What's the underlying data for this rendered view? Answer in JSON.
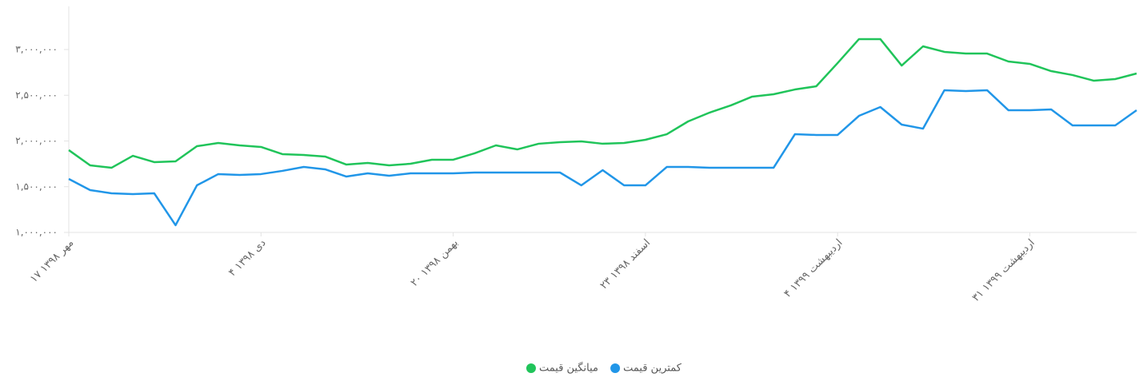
{
  "chart_data": {
    "type": "line",
    "categories": [
      "۱۷ مهر ۱۳۹۸",
      null,
      null,
      null,
      null,
      null,
      null,
      null,
      null,
      "۴ دی ۱۳۹۸",
      null,
      null,
      null,
      null,
      null,
      null,
      null,
      null,
      "۲۰ بهمن ۱۳۹۸",
      null,
      null,
      null,
      null,
      null,
      null,
      null,
      null,
      "۲۳ اسفند ۱۳۹۸",
      null,
      null,
      null,
      null,
      null,
      null,
      null,
      null,
      "۴ اردیبهشت ۱۳۹۹",
      null,
      null,
      null,
      null,
      null,
      null,
      null,
      null,
      "۳۱ اردیبهشت ۱۳۹۹",
      null,
      null,
      null,
      null,
      null
    ],
    "series": [
      {
        "name": "کمترین قیمت",
        "color": "#2196e8",
        "values": [
          1585000,
          1463000,
          1428000,
          1419000,
          1428000,
          1079000,
          1515000,
          1638000,
          1629000,
          1638000,
          1673000,
          1716000,
          1690000,
          1611000,
          1646000,
          1620000,
          1646000,
          1646000,
          1646000,
          1655000,
          1655000,
          1655000,
          1655000,
          1655000,
          1515000,
          1681000,
          1515000,
          1515000,
          1716000,
          1716000,
          1707000,
          1707000,
          1707000,
          1707000,
          2074000,
          2066000,
          2066000,
          2275000,
          2371000,
          2179000,
          2135000,
          2555000,
          2546000,
          2555000,
          2336000,
          2336000,
          2345000,
          2170000,
          2170000,
          2170000,
          2336000
        ]
      },
      {
        "name": "میانگین قیمت",
        "color": "#20c45a",
        "values": [
          1900000,
          1734000,
          1707000,
          1838000,
          1769000,
          1777000,
          1943000,
          1978000,
          1952000,
          1935000,
          1856000,
          1847000,
          1830000,
          1742000,
          1760000,
          1734000,
          1751000,
          1795000,
          1795000,
          1865000,
          1952000,
          1908000,
          1970000,
          1987000,
          1996000,
          1970000,
          1978000,
          2013000,
          2074000,
          2214000,
          2310000,
          2389000,
          2485000,
          2511000,
          2563000,
          2598000,
          2852000,
          3114000,
          3114000,
          2825000,
          3035000,
          2974000,
          2956000,
          2956000,
          2869000,
          2843000,
          2764000,
          2721000,
          2659000,
          2677000,
          2738000
        ]
      }
    ],
    "ylim": [
      1000000,
      3470000
    ],
    "yticks": [
      {
        "value": 1000000,
        "label": "۱,۰۰۰,۰۰۰"
      },
      {
        "value": 1500000,
        "label": "۱,۵۰۰,۰۰۰"
      },
      {
        "value": 2000000,
        "label": "۲,۰۰۰,۰۰۰"
      },
      {
        "value": 2500000,
        "label": "۲,۵۰۰,۰۰۰"
      },
      {
        "value": 3000000,
        "label": "۳,۰۰۰,۰۰۰"
      }
    ],
    "grid": false,
    "legend": "bottom"
  }
}
